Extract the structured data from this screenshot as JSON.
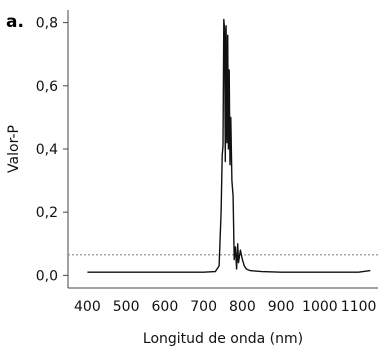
{
  "panel_label": "a.",
  "chart_data": {
    "type": "line",
    "xlabel": "Longitud de onda (nm)",
    "ylabel": "Valor-P",
    "xlim": [
      350,
      1150
    ],
    "ylim": [
      -0.04,
      0.84
    ],
    "x_ticks": [
      400,
      500,
      600,
      700,
      800,
      900,
      1000,
      1100
    ],
    "x_tick_labels": [
      "400",
      "500",
      "600",
      "700",
      "800",
      "900",
      "1000",
      "1100"
    ],
    "y_ticks": [
      0.0,
      0.2,
      0.4,
      0.6,
      0.8
    ],
    "y_tick_labels": [
      "0,0",
      "0,2",
      "0,4",
      "0,6",
      "0,8"
    ],
    "grid": false,
    "reference_line": {
      "y": 0.065,
      "style": "dotted",
      "color": "#888888"
    },
    "series": [
      {
        "color": "#111111",
        "x": [
          400,
          500,
          600,
          700,
          730,
          740,
          745,
          748,
          750,
          752,
          754,
          756,
          758,
          760,
          762,
          764,
          766,
          768,
          770,
          773,
          776,
          779,
          782,
          785,
          788,
          790,
          795,
          800,
          805,
          810,
          820,
          850,
          900,
          1000,
          1100,
          1130
        ],
        "y": [
          0.01,
          0.01,
          0.01,
          0.01,
          0.012,
          0.03,
          0.2,
          0.38,
          0.41,
          0.81,
          0.78,
          0.36,
          0.79,
          0.42,
          0.76,
          0.4,
          0.65,
          0.35,
          0.5,
          0.3,
          0.25,
          0.05,
          0.09,
          0.02,
          0.1,
          0.04,
          0.08,
          0.05,
          0.03,
          0.02,
          0.015,
          0.012,
          0.01,
          0.01,
          0.01,
          0.015
        ]
      }
    ]
  }
}
